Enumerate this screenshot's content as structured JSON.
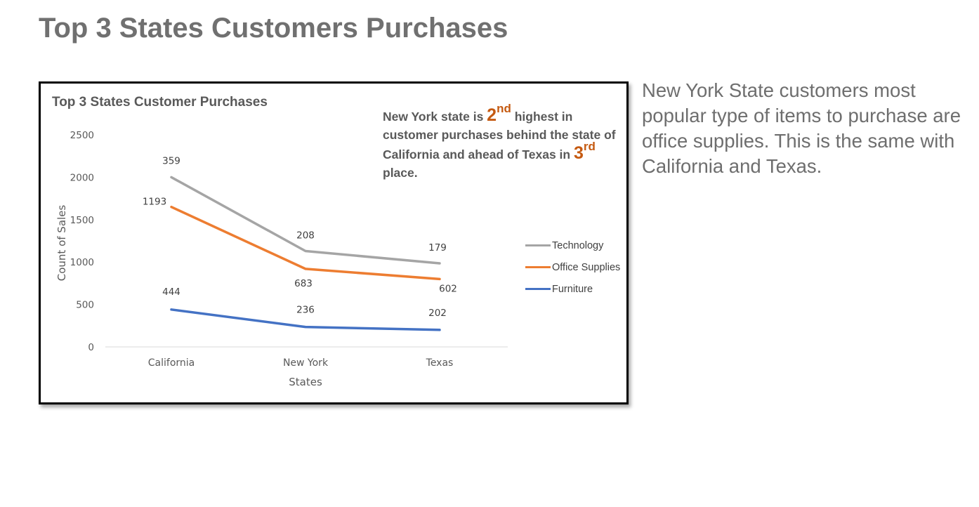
{
  "slide": {
    "title": "Top 3 States Customers Purchases",
    "side_text": "New York State customers most popular type of items to purchase are office supplies. This is the same with California and Texas."
  },
  "callout": {
    "part1": "New York state is ",
    "rank1": "2",
    "rank1_suffix": "nd",
    "part2": " highest in customer purchases behind the state of California and ahead of Texas in ",
    "rank2": "3",
    "rank2_suffix": "rd",
    "part3": " place."
  },
  "colors": {
    "technology": "#a5a5a5",
    "office_supplies": "#ed7d31",
    "furniture": "#4472c4",
    "callout_highlight": "#c55a11"
  },
  "chart_data": {
    "type": "line",
    "title": "Top 3 States Customer Purchases",
    "xlabel": "States",
    "ylabel": "Count of Sales",
    "categories": [
      "California",
      "New York",
      "Texas"
    ],
    "ylim": [
      0,
      2500
    ],
    "yticks": [
      0,
      500,
      1000,
      1500,
      2000,
      2500
    ],
    "grid": false,
    "legend_position": "right",
    "series": [
      {
        "name": "Technology",
        "values": [
          2000,
          1130,
          985
        ],
        "data_labels": [
          "359",
          "208",
          "179"
        ],
        "color": "#a5a5a5"
      },
      {
        "name": "Office Supplies",
        "values": [
          1650,
          920,
          800
        ],
        "data_labels": [
          "1193",
          "683",
          "602"
        ],
        "color": "#ed7d31"
      },
      {
        "name": "Furniture",
        "values": [
          440,
          235,
          200
        ],
        "data_labels": [
          "444",
          "236",
          "202"
        ],
        "color": "#4472c4"
      }
    ]
  }
}
